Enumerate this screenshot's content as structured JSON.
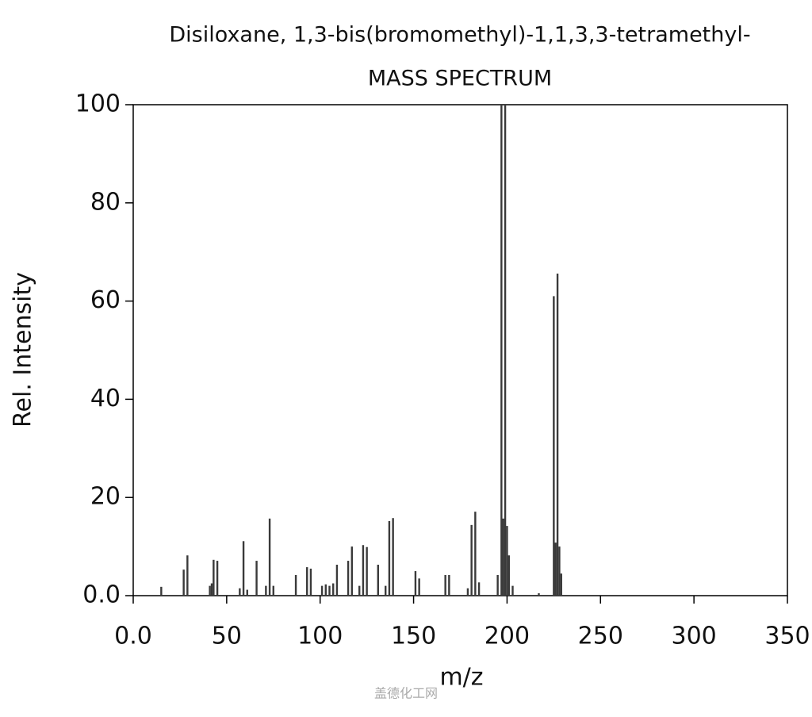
{
  "chart_data": {
    "type": "bar",
    "title": "Disiloxane, 1,3-bis(bromomethyl)-1,1,3,3-tetramethyl-",
    "subtitle": "MASS SPECTRUM",
    "x_label": "m/z",
    "y_label": "Rel. Intensity",
    "x": [
      15,
      27,
      29,
      41,
      42,
      43,
      45,
      57,
      59,
      61,
      66,
      71,
      73,
      75,
      87,
      93,
      95,
      101,
      103,
      105,
      107,
      109,
      115,
      117,
      121,
      123,
      125,
      131,
      135,
      137,
      139,
      151,
      153,
      167,
      169,
      179,
      181,
      183,
      185,
      195,
      197,
      198,
      199,
      200,
      201,
      203,
      217,
      225,
      226,
      227,
      228,
      229
    ],
    "values": [
      1.8,
      5.3,
      8.2,
      2.0,
      2.5,
      7.3,
      7.1,
      1.5,
      11.1,
      1.2,
      7.1,
      2.0,
      15.7,
      2.0,
      4.2,
      5.8,
      5.5,
      2.0,
      2.3,
      2.0,
      2.5,
      6.3,
      7.1,
      10.0,
      2.0,
      10.3,
      9.9,
      6.3,
      2.0,
      15.2,
      15.8,
      5.0,
      3.5,
      4.2,
      4.2,
      1.5,
      14.4,
      17.1,
      2.7,
      4.2,
      100,
      15.7,
      100,
      14.2,
      8.2,
      2.0,
      0.5,
      61,
      10.8,
      65.6,
      10.0,
      4.5
    ],
    "color": "#3a3a3a",
    "xlim": [
      0,
      350
    ],
    "xticks": [
      {
        "value": 0,
        "label": "0.0"
      },
      50,
      100,
      150,
      200,
      250,
      300,
      350
    ],
    "ylim": [
      0,
      100
    ],
    "yticks": [
      {
        "value": 0,
        "label": "0.0"
      },
      20,
      40,
      60,
      80,
      100
    ],
    "watermark": "盖德化工网"
  }
}
